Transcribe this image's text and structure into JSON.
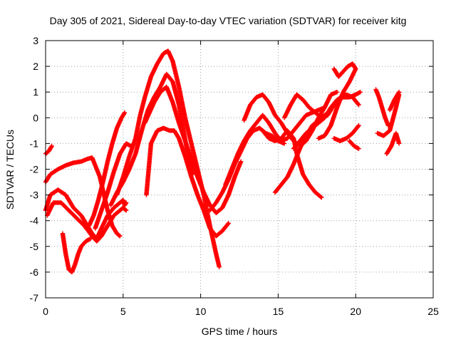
{
  "chart_data": {
    "type": "scatter",
    "title": "Day 305 of 2021, Sidereal Day-to-day VTEC variation (SDTVAR) for receiver kitg",
    "xlabel": "GPS time / hours",
    "ylabel": "SDTVAR / TECUs",
    "xlim": [
      0,
      25
    ],
    "ylim": [
      -7,
      3
    ],
    "xticks": [
      "0",
      "5",
      "10",
      "15",
      "20",
      "25"
    ],
    "yticks": [
      "3",
      "2",
      "1",
      "0",
      "-1",
      "-2",
      "-3",
      "-4",
      "-5",
      "-6",
      "-7"
    ],
    "grid": true,
    "marker": "plus",
    "color": "#ff0000",
    "series": [
      {
        "x": [
          0.0,
          0.2,
          0.4
        ],
        "y": [
          -1.4,
          -1.3,
          -1.1
        ]
      },
      {
        "x": [
          0.0,
          0.3,
          0.8,
          1.3,
          1.8,
          2.3,
          2.7,
          3.0,
          3.3,
          3.6,
          4.0,
          4.4,
          4.8,
          5.0,
          5.1,
          5.2
        ],
        "y": [
          -3.6,
          -3.0,
          -2.8,
          -3.0,
          -3.5,
          -3.8,
          -4.2,
          -4.5,
          -4.7,
          -4.3,
          -3.8,
          -3.5,
          -3.3,
          -3.2,
          -3.4,
          -3.3
        ]
      },
      {
        "x": [
          0.0,
          0.3,
          0.8,
          1.3,
          1.8,
          2.3,
          2.7,
          3.0,
          3.5,
          4.0,
          4.3,
          4.6,
          4.8
        ],
        "y": [
          -2.5,
          -2.2,
          -2.0,
          -1.85,
          -1.75,
          -1.7,
          -1.6,
          -1.55,
          -2.3,
          -3.6,
          -4.2,
          -4.5,
          -4.6
        ]
      },
      {
        "x": [
          0.1,
          0.5,
          1.0,
          1.5,
          2.0,
          2.5,
          3.0,
          3.3,
          3.6,
          4.0,
          4.4,
          4.8,
          5.0,
          5.2
        ],
        "y": [
          -3.8,
          -3.3,
          -3.3,
          -3.6,
          -3.9,
          -4.2,
          -4.6,
          -4.8,
          -4.6,
          -4.2,
          -3.8,
          -3.6,
          -3.5,
          -3.6
        ]
      },
      {
        "x": [
          1.1,
          1.3,
          1.5,
          1.7,
          1.9,
          2.1,
          2.3,
          2.6,
          2.9
        ],
        "y": [
          -4.5,
          -5.3,
          -5.9,
          -6.0,
          -5.7,
          -5.3,
          -5.0,
          -4.8,
          -4.7
        ]
      },
      {
        "x": [
          2.8,
          3.1,
          3.4,
          3.7,
          4.0,
          4.3,
          4.6,
          4.9,
          5.1
        ],
        "y": [
          -4.2,
          -3.8,
          -3.2,
          -2.5,
          -1.7,
          -1.0,
          -0.4,
          0.0,
          0.2
        ]
      },
      {
        "x": [
          3.2,
          3.6,
          4.0,
          4.4,
          4.8,
          5.2,
          5.5
        ],
        "y": [
          -4.3,
          -3.6,
          -2.9,
          -2.1,
          -1.4,
          -1.0,
          -1.1
        ]
      },
      {
        "x": [
          4.2,
          4.6,
          5.0,
          5.4,
          5.8,
          6.2,
          6.6,
          7.0,
          7.4,
          7.8,
          8.2,
          8.6,
          8.9,
          9.2,
          9.5
        ],
        "y": [
          -3.4,
          -2.9,
          -2.5,
          -2.0,
          -1.4,
          -0.5,
          0.3,
          0.8,
          1.2,
          1.7,
          1.4,
          0.5,
          -0.5,
          -1.5,
          -2.2
        ]
      },
      {
        "x": [
          4.6,
          5.0,
          5.4,
          5.8,
          6.1,
          6.4,
          6.8,
          7.2,
          7.6,
          7.9,
          8.2,
          8.6,
          9.0,
          9.4,
          9.8,
          10.2,
          10.6,
          11.0,
          11.2
        ],
        "y": [
          -3.0,
          -2.3,
          -1.5,
          -0.8,
          0.1,
          0.8,
          1.6,
          2.1,
          2.5,
          2.6,
          2.2,
          1.2,
          0.0,
          -1.0,
          -2.0,
          -3.0,
          -4.2,
          -5.3,
          -5.8
        ]
      },
      {
        "x": [
          6.4,
          6.7,
          7.0,
          7.4,
          7.8,
          8.2,
          8.6,
          9.0,
          9.4,
          9.8,
          10.2,
          10.6,
          11.0,
          11.4,
          11.8,
          12.2,
          12.6
        ],
        "y": [
          -0.2,
          0.2,
          0.6,
          1.0,
          1.2,
          0.6,
          -0.2,
          -0.9,
          -1.6,
          -2.3,
          -2.9,
          -3.4,
          -3.7,
          -3.5,
          -3.0,
          -2.3,
          -1.7
        ]
      },
      {
        "x": [
          6.5,
          6.8,
          7.2,
          7.6,
          8.0,
          8.3,
          8.6,
          9.0,
          9.4,
          9.8,
          10.2,
          10.6,
          11.0,
          11.4,
          11.8
        ],
        "y": [
          -3.0,
          -1.0,
          -0.5,
          -0.4,
          -0.5,
          -0.5,
          -0.8,
          -1.5,
          -2.3,
          -3.0,
          -3.6,
          -4.3,
          -4.6,
          -4.4,
          -4.1
        ]
      },
      {
        "x": [
          10.6,
          11.0,
          11.4,
          11.8,
          12.2,
          12.6,
          13.0,
          13.4,
          13.8,
          14.2,
          14.6,
          15.0,
          15.4
        ],
        "y": [
          -3.6,
          -3.3,
          -2.9,
          -2.4,
          -1.8,
          -1.3,
          -0.8,
          -0.5,
          -0.4,
          -0.6,
          -0.7,
          -0.9,
          -1.0
        ]
      },
      {
        "x": [
          11.6,
          12.0,
          12.4,
          12.8,
          13.2,
          13.6,
          14.0,
          14.4,
          14.8,
          15.2,
          15.6,
          16.0,
          16.4,
          16.8,
          17.2,
          17.6,
          18.0
        ],
        "y": [
          -2.6,
          -2.0,
          -1.4,
          -0.9,
          -0.5,
          -0.2,
          0.1,
          -0.2,
          -0.6,
          -0.9,
          -0.8,
          -0.5,
          -0.2,
          0.1,
          0.2,
          0.3,
          0.4
        ]
      },
      {
        "x": [
          12.8,
          13.2,
          13.6,
          14.0,
          14.4,
          14.8,
          15.2,
          15.6,
          16.0,
          16.4,
          16.8,
          17.2,
          17.6,
          18.0,
          18.4,
          18.8
        ],
        "y": [
          -0.1,
          0.5,
          0.8,
          0.9,
          0.6,
          0.1,
          -0.2,
          -0.6,
          -0.9,
          -1.1,
          -0.9,
          -0.5,
          0.0,
          0.4,
          0.9,
          1.0
        ]
      },
      {
        "x": [
          14.0,
          14.4,
          14.8,
          15.2,
          15.6,
          16.0,
          16.2,
          16.6,
          17.0,
          17.4,
          17.8
        ],
        "y": [
          -0.5,
          -0.8,
          -0.9,
          -0.8,
          -0.5,
          -0.8,
          -1.4,
          -2.2,
          -2.6,
          -2.9,
          -3.1
        ]
      },
      {
        "x": [
          14.8,
          15.2,
          15.6,
          16.0,
          16.4,
          16.8,
          17.2,
          17.6,
          18.0,
          18.4
        ],
        "y": [
          -2.9,
          -2.6,
          -2.3,
          -1.8,
          -1.2,
          -0.7,
          -0.3,
          -0.1,
          0.1,
          0.3
        ]
      },
      {
        "x": [
          16.0,
          16.4,
          16.8,
          17.2,
          17.6,
          18.0,
          18.4,
          18.8,
          19.2,
          19.6,
          20.0,
          20.3
        ],
        "y": [
          -1.2,
          -0.9,
          -0.6,
          -0.4,
          -0.2,
          0.0,
          0.4,
          0.7,
          0.8,
          0.8,
          0.9,
          1.0
        ]
      },
      {
        "x": [
          15.4,
          15.8,
          16.2,
          16.6,
          17.0,
          17.4,
          17.8,
          18.2,
          18.6,
          19.0,
          19.4,
          19.8,
          20.2
        ],
        "y": [
          0.0,
          0.5,
          0.9,
          0.7,
          0.4,
          0.2,
          0.0,
          0.1,
          0.5,
          0.8,
          0.9,
          0.8,
          0.5
        ]
      },
      {
        "x": [
          17.6,
          18.0,
          18.4,
          18.8,
          19.2,
          19.6,
          20.0
        ],
        "y": [
          -0.8,
          -0.7,
          -0.3,
          0.4,
          1.0,
          1.4,
          1.9
        ]
      },
      {
        "x": [
          18.6,
          18.9,
          19.2,
          19.5,
          19.8,
          20.0
        ],
        "y": [
          1.9,
          1.6,
          1.8,
          2.0,
          2.1,
          1.9
        ]
      },
      {
        "x": [
          18.6,
          19.0,
          19.4,
          19.8,
          20.2
        ],
        "y": [
          -0.8,
          -0.9,
          -0.8,
          -0.6,
          -0.3
        ]
      },
      {
        "x": [
          19.6,
          19.9,
          20.2
        ],
        "y": [
          -0.9,
          -1.1,
          -1.2
        ]
      },
      {
        "x": [
          21.3,
          21.5,
          21.7,
          21.9,
          22.1
        ],
        "y": [
          1.1,
          0.8,
          0.4,
          0.0,
          -0.3
        ]
      },
      {
        "x": [
          21.4,
          21.8,
          22.2,
          22.6,
          22.8
        ],
        "y": [
          -0.6,
          -0.7,
          -0.5,
          0.4,
          0.9
        ]
      },
      {
        "x": [
          22.0,
          22.3,
          22.6,
          22.8
        ],
        "y": [
          -1.4,
          -1.1,
          -0.6,
          -1.0
        ]
      },
      {
        "x": [
          22.2,
          22.5,
          22.8
        ],
        "y": [
          0.3,
          0.7,
          1.0
        ]
      }
    ]
  }
}
